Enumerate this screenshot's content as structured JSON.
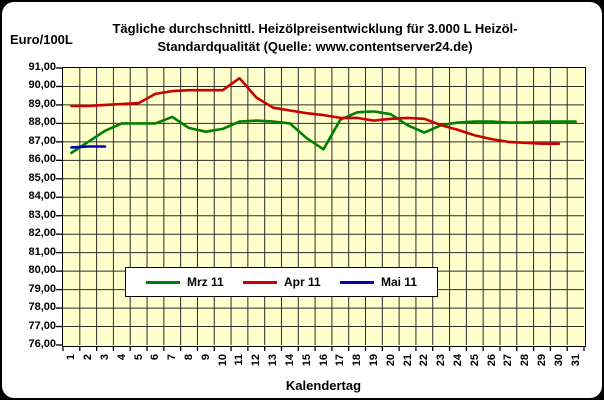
{
  "window": {
    "frame_color": "#000000",
    "canvas_color": "#ffffff"
  },
  "header": {
    "y_axis_unit_label": "Euro/100L",
    "title_lines": [
      "Tägliche durchschnittl. Heizölpreisentwicklung für 3.000 L Heizöl-",
      "Standardqualität (Quelle: www.contentserver24.de)"
    ]
  },
  "chart_data": {
    "type": "line",
    "title": "Tägliche durchschnittl. Heizölpreisentwicklung für 3.000 L Heizöl-Standardqualität (Quelle: www.contentserver24.de)",
    "xlabel": "Kalendertag",
    "ylabel": "Euro/100L",
    "x": [
      1,
      2,
      3,
      4,
      5,
      6,
      7,
      8,
      9,
      10,
      11,
      12,
      13,
      14,
      15,
      16,
      17,
      18,
      19,
      20,
      21,
      22,
      23,
      24,
      25,
      26,
      27,
      28,
      29,
      30,
      31
    ],
    "ylim": [
      76,
      91
    ],
    "ytick_step": 1,
    "ytick_format": "comma-decimal-2",
    "grid": true,
    "plot_background": "#ffffcc",
    "gridline_color": "#2b2b2b",
    "legend_position": "bottom-center-inside",
    "series": [
      {
        "name": "Mrz 11",
        "color": "#008000",
        "values": [
          86.4,
          87.0,
          87.6,
          88.0,
          88.0,
          88.0,
          88.35,
          87.75,
          87.55,
          87.7,
          88.1,
          88.15,
          88.1,
          88.0,
          87.2,
          86.6,
          88.2,
          88.6,
          88.65,
          88.5,
          87.9,
          87.5,
          87.9,
          88.05,
          88.1,
          88.1,
          88.05,
          88.05,
          88.1,
          88.1,
          88.1
        ]
      },
      {
        "name": "Apr 11",
        "color": "#cc0000",
        "values": [
          88.95,
          88.95,
          89.0,
          89.05,
          89.1,
          89.6,
          89.75,
          89.8,
          89.8,
          89.8,
          90.45,
          89.4,
          88.85,
          88.7,
          88.55,
          88.45,
          88.3,
          88.3,
          88.15,
          88.25,
          88.3,
          88.25,
          87.9,
          87.65,
          87.35,
          87.15,
          87.0,
          86.95,
          86.9,
          86.9
        ]
      },
      {
        "name": "Mai 11",
        "color": "#0000bb",
        "values": [
          86.7,
          86.75,
          86.75
        ]
      }
    ]
  }
}
